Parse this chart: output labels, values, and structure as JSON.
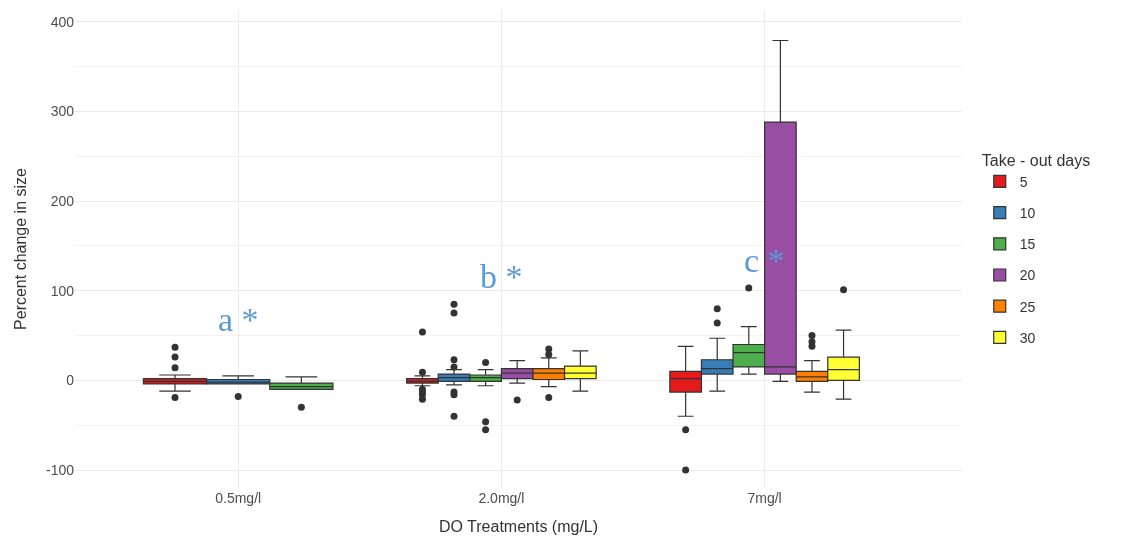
{
  "chart_data": {
    "type": "box",
    "xlabel": "DO Treatments (mg/L)",
    "ylabel": "Percent change in size",
    "legend_title": "Take - out days",
    "categories": [
      "0.5mg/l",
      "2.0mg/l",
      "7mg/l"
    ],
    "ylim": [
      -120,
      413
    ],
    "yticks": [
      -100,
      0,
      100,
      200,
      300,
      400
    ],
    "grid": true,
    "legend": "right",
    "series": [
      {
        "name": "5",
        "color": "#e41a1c",
        "boxes": [
          {
            "low": -12,
            "q1": -4,
            "median": -1,
            "q3": 2,
            "high": 6,
            "outliers": [
              37,
              26,
              14,
              -19
            ]
          },
          {
            "low": -6,
            "q1": -3,
            "median": -1,
            "q3": 2,
            "high": 5,
            "outliers": [
              54,
              9,
              -10,
              -13,
              -16,
              -21
            ]
          },
          {
            "low": -40,
            "q1": -13,
            "median": 2,
            "q3": 10,
            "high": 38,
            "outliers": [
              -55,
              -100
            ]
          }
        ]
      },
      {
        "name": "10",
        "color": "#377eb8",
        "boxes": [
          {
            "low": -4,
            "q1": -4,
            "median": -2,
            "q3": 1,
            "high": 5,
            "outliers": [
              -18
            ]
          },
          {
            "low": -5,
            "q1": -1,
            "median": 3,
            "q3": 7,
            "high": 12,
            "outliers": [
              85,
              75,
              23,
              15,
              -13,
              -16,
              -40
            ]
          },
          {
            "low": -12,
            "q1": 7,
            "median": 13,
            "q3": 23,
            "high": 47,
            "outliers": [
              80,
              64
            ]
          }
        ]
      },
      {
        "name": "15",
        "color": "#4daf4a",
        "boxes": [
          {
            "low": -10,
            "q1": -10,
            "median": -7,
            "q3": -3,
            "high": 4,
            "outliers": [
              -30
            ]
          },
          {
            "low": -6,
            "q1": -1,
            "median": 3,
            "q3": 6,
            "high": 12,
            "outliers": [
              20,
              -46,
              -55
            ]
          },
          {
            "low": 7,
            "q1": 15,
            "median": 31,
            "q3": 40,
            "high": 60,
            "outliers": [
              103
            ]
          }
        ]
      },
      {
        "name": "20",
        "color": "#984ea3",
        "boxes": [
          null,
          {
            "low": -3,
            "q1": 2,
            "median": 8,
            "q3": 13,
            "high": 22,
            "outliers": [
              -22
            ]
          },
          {
            "low": -1,
            "q1": 7,
            "median": 15,
            "q3": 288,
            "high": 379
          }
        ]
      },
      {
        "name": "25",
        "color": "#ff7f00",
        "boxes": [
          null,
          {
            "low": -7,
            "q1": 1,
            "median": 8,
            "q3": 13,
            "high": 25,
            "outliers": [
              35,
              29,
              -19
            ]
          },
          {
            "low": -13,
            "q1": -1,
            "median": 4,
            "q3": 10,
            "high": 22,
            "outliers": [
              50,
              43,
              38
            ]
          }
        ]
      },
      {
        "name": "30",
        "color": "#ffff33",
        "boxes": [
          null,
          {
            "low": -12,
            "q1": 2,
            "median": 8,
            "q3": 16,
            "high": 33
          },
          {
            "low": -21,
            "q1": 0,
            "median": 12,
            "q3": 26,
            "high": 56,
            "outliers": [
              101
            ]
          }
        ]
      }
    ],
    "annotations": [
      "a *",
      "b *",
      "c *"
    ]
  }
}
